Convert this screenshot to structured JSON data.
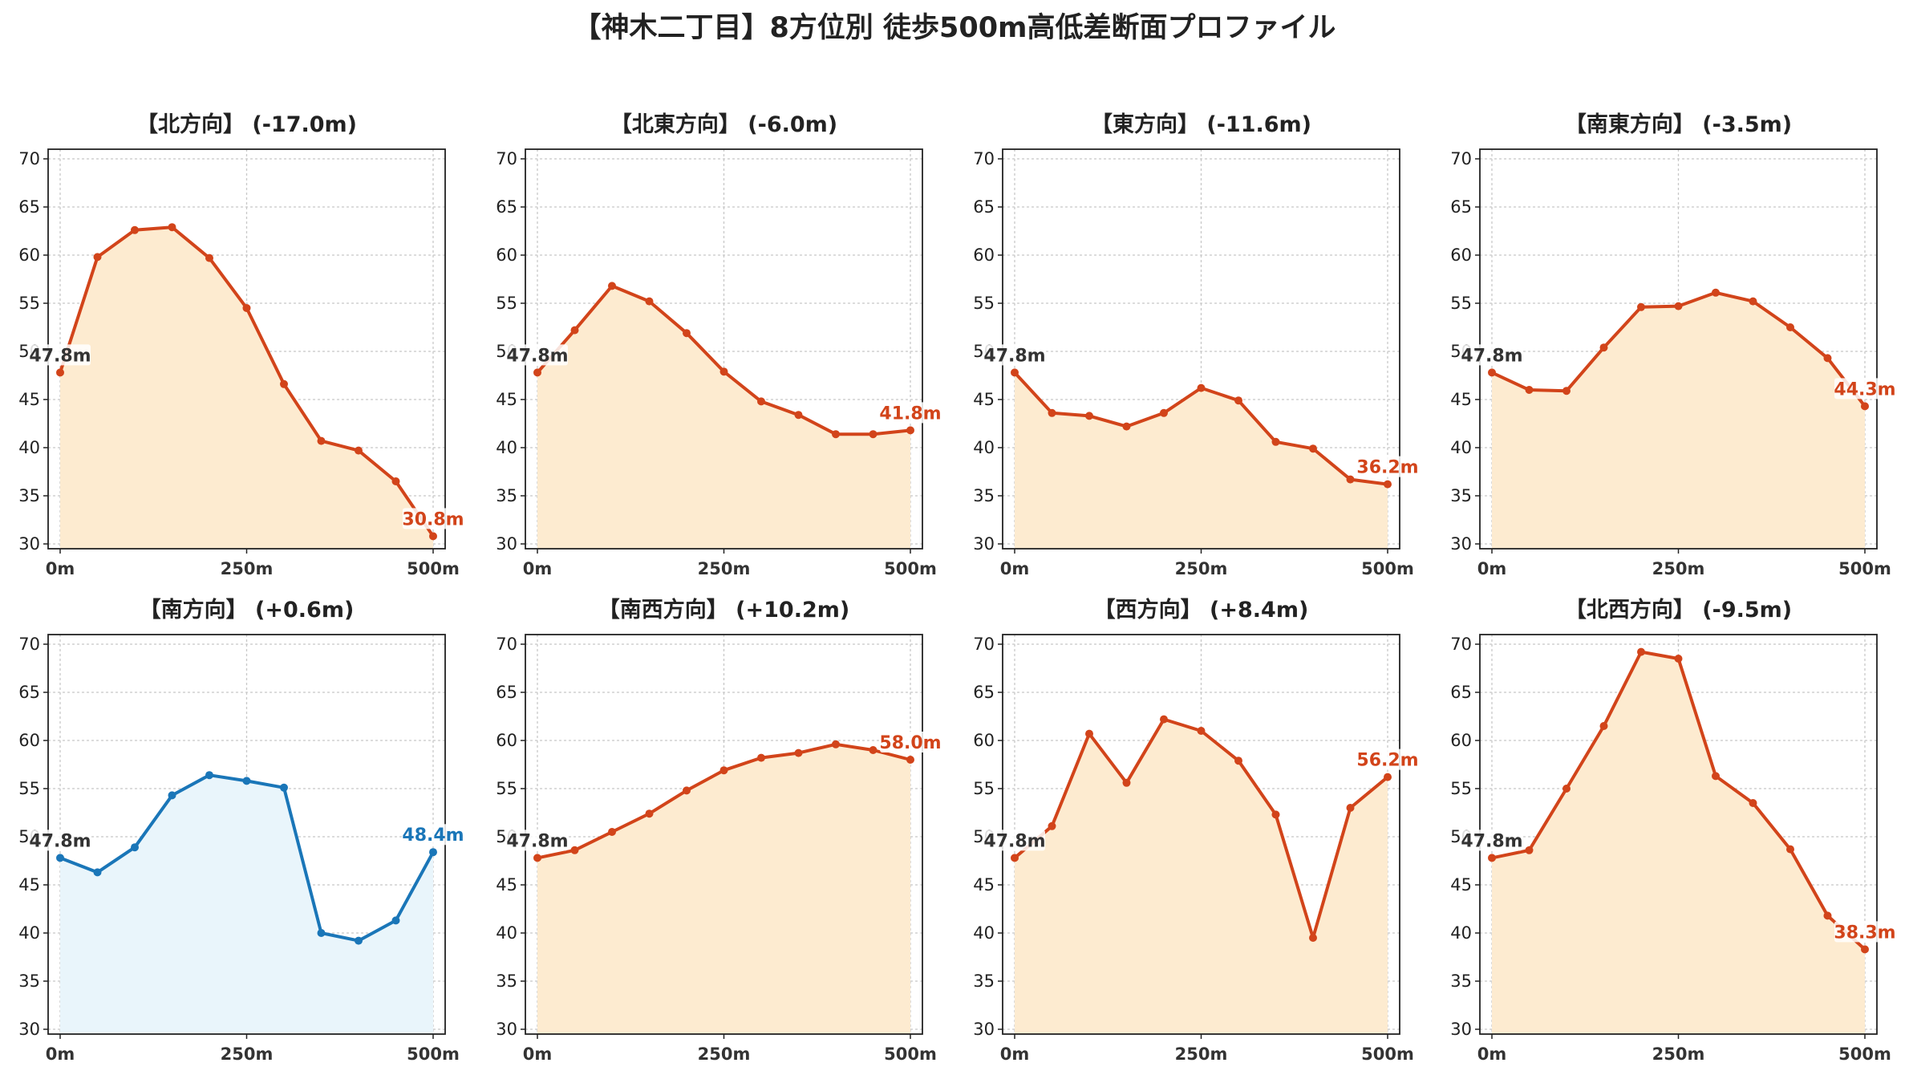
{
  "title": "【神木二丁目】8方位別 徒歩500m高低差断面プロファイル",
  "colors": {
    "descend_line": "#d2441a",
    "descend_fill": "#fdebd0",
    "ascend_line": "#1a76b8",
    "ascend_fill": "#e9f5fb",
    "start_label": "#333333"
  },
  "chart_data": [
    {
      "type": "area",
      "title": "【北方向】 (-17.0m)",
      "color_scheme": "descend",
      "x": [
        0,
        50,
        100,
        150,
        200,
        250,
        300,
        350,
        400,
        450,
        500
      ],
      "y": [
        47.8,
        59.8,
        62.6,
        62.9,
        59.7,
        54.5,
        46.6,
        40.7,
        39.7,
        36.5,
        30.8
      ],
      "xticks": [
        {
          "v": 0,
          "label": "0m"
        },
        {
          "v": 250,
          "label": "250m"
        },
        {
          "v": 500,
          "label": "500m"
        }
      ],
      "yticks": [
        30,
        35,
        40,
        45,
        50,
        55,
        60,
        65,
        70
      ],
      "ylim": [
        29.5,
        71
      ],
      "start_label": "47.8m",
      "end_label": "30.8m",
      "grid": true
    },
    {
      "type": "area",
      "title": "【北東方向】 (-6.0m)",
      "color_scheme": "descend",
      "x": [
        0,
        50,
        100,
        150,
        200,
        250,
        300,
        350,
        400,
        450,
        500
      ],
      "y": [
        47.8,
        52.2,
        56.8,
        55.2,
        51.9,
        47.9,
        44.8,
        43.4,
        41.4,
        41.4,
        41.8
      ],
      "xticks": [
        {
          "v": 0,
          "label": "0m"
        },
        {
          "v": 250,
          "label": "250m"
        },
        {
          "v": 500,
          "label": "500m"
        }
      ],
      "yticks": [
        30,
        35,
        40,
        45,
        50,
        55,
        60,
        65,
        70
      ],
      "ylim": [
        29.5,
        71
      ],
      "start_label": "47.8m",
      "end_label": "41.8m",
      "grid": true
    },
    {
      "type": "area",
      "title": "【東方向】 (-11.6m)",
      "color_scheme": "descend",
      "x": [
        0,
        50,
        100,
        150,
        200,
        250,
        300,
        350,
        400,
        450,
        500
      ],
      "y": [
        47.8,
        43.6,
        43.3,
        42.2,
        43.6,
        46.2,
        44.9,
        40.6,
        39.9,
        36.7,
        36.2
      ],
      "xticks": [
        {
          "v": 0,
          "label": "0m"
        },
        {
          "v": 250,
          "label": "250m"
        },
        {
          "v": 500,
          "label": "500m"
        }
      ],
      "yticks": [
        30,
        35,
        40,
        45,
        50,
        55,
        60,
        65,
        70
      ],
      "ylim": [
        29.5,
        71
      ],
      "start_label": "47.8m",
      "end_label": "36.2m",
      "grid": true
    },
    {
      "type": "area",
      "title": "【南東方向】 (-3.5m)",
      "color_scheme": "descend",
      "x": [
        0,
        50,
        100,
        150,
        200,
        250,
        300,
        350,
        400,
        450,
        500
      ],
      "y": [
        47.8,
        46.0,
        45.9,
        50.4,
        54.6,
        54.7,
        56.1,
        55.2,
        52.5,
        49.3,
        44.3
      ],
      "xticks": [
        {
          "v": 0,
          "label": "0m"
        },
        {
          "v": 250,
          "label": "250m"
        },
        {
          "v": 500,
          "label": "500m"
        }
      ],
      "yticks": [
        30,
        35,
        40,
        45,
        50,
        55,
        60,
        65,
        70
      ],
      "ylim": [
        29.5,
        71
      ],
      "start_label": "47.8m",
      "end_label": "44.3m",
      "grid": true
    },
    {
      "type": "area",
      "title": "【南方向】 (+0.6m)",
      "color_scheme": "ascend",
      "x": [
        0,
        50,
        100,
        150,
        200,
        250,
        300,
        350,
        400,
        450,
        500
      ],
      "y": [
        47.8,
        46.3,
        48.9,
        54.3,
        56.4,
        55.8,
        55.1,
        40.0,
        39.2,
        41.3,
        48.4
      ],
      "xticks": [
        {
          "v": 0,
          "label": "0m"
        },
        {
          "v": 250,
          "label": "250m"
        },
        {
          "v": 500,
          "label": "500m"
        }
      ],
      "yticks": [
        30,
        35,
        40,
        45,
        50,
        55,
        60,
        65,
        70
      ],
      "ylim": [
        29.5,
        71
      ],
      "start_label": "47.8m",
      "end_label": "48.4m",
      "grid": true
    },
    {
      "type": "area",
      "title": "【南西方向】 (+10.2m)",
      "color_scheme": "descend",
      "x": [
        0,
        50,
        100,
        150,
        200,
        250,
        300,
        350,
        400,
        450,
        500
      ],
      "y": [
        47.8,
        48.6,
        50.5,
        52.4,
        54.8,
        56.9,
        58.2,
        58.7,
        59.6,
        59.0,
        58.0
      ],
      "xticks": [
        {
          "v": 0,
          "label": "0m"
        },
        {
          "v": 250,
          "label": "250m"
        },
        {
          "v": 500,
          "label": "500m"
        }
      ],
      "yticks": [
        30,
        35,
        40,
        45,
        50,
        55,
        60,
        65,
        70
      ],
      "ylim": [
        29.5,
        71
      ],
      "start_label": "47.8m",
      "end_label": "58.0m",
      "grid": true
    },
    {
      "type": "area",
      "title": "【西方向】 (+8.4m)",
      "color_scheme": "descend",
      "x": [
        0,
        50,
        100,
        150,
        200,
        250,
        300,
        350,
        400,
        450,
        500
      ],
      "y": [
        47.8,
        51.1,
        60.7,
        55.6,
        62.2,
        61.0,
        57.9,
        52.3,
        39.5,
        53.0,
        56.2
      ],
      "xticks": [
        {
          "v": 0,
          "label": "0m"
        },
        {
          "v": 250,
          "label": "250m"
        },
        {
          "v": 500,
          "label": "500m"
        }
      ],
      "yticks": [
        30,
        35,
        40,
        45,
        50,
        55,
        60,
        65,
        70
      ],
      "ylim": [
        29.5,
        71
      ],
      "start_label": "47.8m",
      "end_label": "56.2m",
      "grid": true
    },
    {
      "type": "area",
      "title": "【北西方向】 (-9.5m)",
      "color_scheme": "descend",
      "x": [
        0,
        50,
        100,
        150,
        200,
        250,
        300,
        350,
        400,
        450,
        500
      ],
      "y": [
        47.8,
        48.6,
        55.0,
        61.5,
        69.2,
        68.5,
        56.3,
        53.5,
        48.7,
        41.8,
        38.3
      ],
      "xticks": [
        {
          "v": 0,
          "label": "0m"
        },
        {
          "v": 250,
          "label": "250m"
        },
        {
          "v": 500,
          "label": "500m"
        }
      ],
      "yticks": [
        30,
        35,
        40,
        45,
        50,
        55,
        60,
        65,
        70
      ],
      "ylim": [
        29.5,
        71
      ],
      "start_label": "47.8m",
      "end_label": "38.3m",
      "grid": true
    }
  ]
}
